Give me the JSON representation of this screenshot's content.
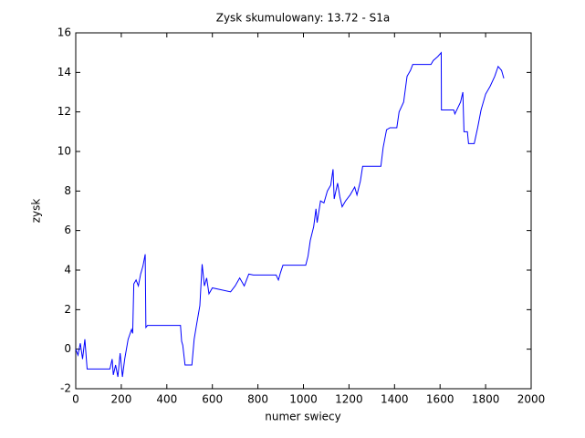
{
  "chart_data": {
    "type": "line",
    "title": "Zysk skumulowany: 13.72 - S1a",
    "xlabel": "numer swiecy",
    "ylabel": "zysk",
    "color": "#0000ff",
    "x": [
      0,
      10,
      20,
      30,
      40,
      50,
      150,
      160,
      165,
      175,
      185,
      195,
      205,
      215,
      230,
      245,
      250,
      255,
      265,
      275,
      285,
      295,
      305,
      308,
      315,
      460,
      465,
      470,
      480,
      510,
      520,
      530,
      545,
      555,
      565,
      575,
      585,
      600,
      680,
      700,
      720,
      740,
      760,
      780,
      880,
      890,
      900,
      910,
      1010,
      1020,
      1030,
      1045,
      1055,
      1060,
      1075,
      1090,
      1105,
      1120,
      1130,
      1135,
      1150,
      1160,
      1170,
      1185,
      1205,
      1225,
      1235,
      1250,
      1260,
      1340,
      1350,
      1365,
      1380,
      1410,
      1420,
      1440,
      1455,
      1470,
      1480,
      1560,
      1570,
      1590,
      1605,
      1606,
      1660,
      1665,
      1690,
      1700,
      1705,
      1720,
      1725,
      1750,
      1765,
      1780,
      1800,
      1820,
      1840,
      1855,
      1870,
      1880
    ],
    "values": [
      0,
      -0.3,
      0.3,
      -0.5,
      0.5,
      -1,
      -1,
      -0.5,
      -1.3,
      -0.8,
      -1.4,
      -0.2,
      -1.4,
      -0.5,
      0.5,
      1,
      0.8,
      3.3,
      3.5,
      3.2,
      3.8,
      4.2,
      4.8,
      1.1,
      1.2,
      1.2,
      0.4,
      0.2,
      -0.8,
      -0.8,
      0.5,
      1.2,
      2.2,
      4.3,
      3.2,
      3.6,
      2.8,
      3.1,
      2.9,
      3.2,
      3.6,
      3.2,
      3.8,
      3.75,
      3.75,
      3.5,
      3.9,
      4.25,
      4.25,
      4.7,
      5.5,
      6.2,
      7.1,
      6.4,
      7.5,
      7.4,
      8,
      8.3,
      9.1,
      7.6,
      8.4,
      7.7,
      7.2,
      7.5,
      7.8,
      8.2,
      7.8,
      8.5,
      9.25,
      9.25,
      10.2,
      11.1,
      11.2,
      11.2,
      12,
      12.5,
      13.8,
      14.1,
      14.4,
      14.4,
      14.6,
      14.8,
      15,
      12.1,
      12.1,
      11.9,
      12.5,
      13,
      11,
      11,
      10.4,
      10.4,
      11.2,
      12.1,
      12.9,
      13.3,
      13.8,
      14.3,
      14.1,
      13.7
    ],
    "xlim": [
      0,
      2000
    ],
    "xticks": [
      0,
      200,
      400,
      600,
      800,
      1000,
      1200,
      1400,
      1600,
      1800,
      2000
    ],
    "ylim": [
      -2,
      16
    ],
    "yticks": [
      -2,
      0,
      2,
      4,
      6,
      8,
      10,
      12,
      14,
      16
    ],
    "grid": false
  }
}
